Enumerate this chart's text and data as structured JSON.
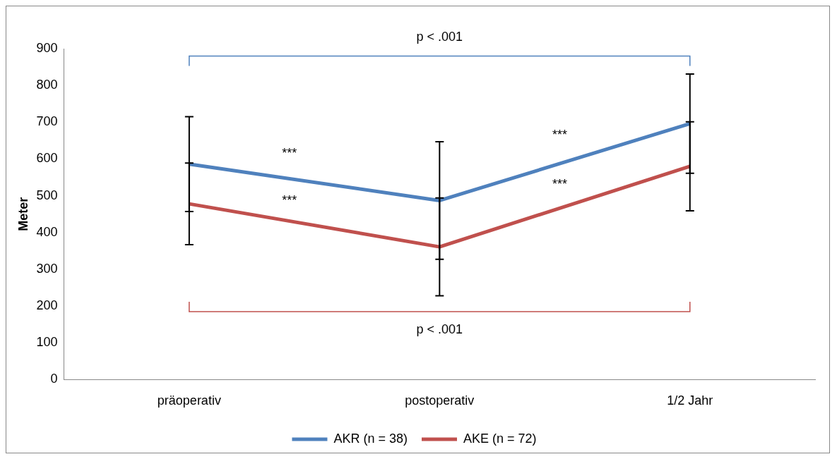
{
  "chart_data": {
    "type": "line",
    "ylabel": "Meter",
    "categories": [
      "präoperativ",
      "postoperativ",
      "1/2 Jahr"
    ],
    "series": [
      {
        "name": "AKR (n = 38)",
        "color": "#4f81bd",
        "values": [
          586,
          487,
          696
        ],
        "errors": [
          129,
          160,
          135
        ]
      },
      {
        "name": "AKE (n = 72)",
        "color": "#c0504d",
        "values": [
          478,
          361,
          580
        ],
        "errors": [
          111,
          133,
          121
        ]
      }
    ],
    "ylim": [
      0,
      900
    ],
    "yticks": [
      0,
      100,
      200,
      300,
      400,
      500,
      600,
      700,
      800,
      900
    ],
    "grid": false,
    "legend": "bottom",
    "marker": "none",
    "line_style": "solid",
    "ref_lines": [
      {
        "axis": "y",
        "value": 880,
        "label": "p < .001",
        "color": "#4f81bd"
      },
      {
        "axis": "y",
        "value": 185,
        "label": "p < .001",
        "color": "#c0504d"
      }
    ],
    "annotations": [
      "***",
      "***",
      "***",
      "***"
    ]
  }
}
